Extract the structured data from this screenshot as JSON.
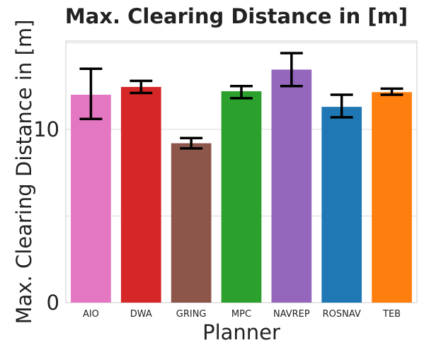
{
  "chart_data": {
    "type": "bar",
    "title": "Max. Clearing Distance in [m]",
    "xlabel": "Planner",
    "ylabel": "Max. Clearing Distance in [m]",
    "categories": [
      "AIO",
      "DWA",
      "GRING",
      "MPC",
      "NAVREP",
      "ROSNAV",
      "TEB"
    ],
    "values": [
      12.0,
      12.45,
      9.2,
      12.2,
      13.45,
      11.3,
      12.15
    ],
    "error_low": [
      10.6,
      12.1,
      8.9,
      11.8,
      12.5,
      10.7,
      12.0
    ],
    "error_high": [
      13.5,
      12.8,
      9.5,
      12.5,
      14.4,
      12.0,
      12.35
    ],
    "colors": [
      "#e377c2",
      "#d62728",
      "#8c564b",
      "#2ca02c",
      "#9467bd",
      "#1f77b4",
      "#ff7f0e"
    ],
    "yticks": [
      0,
      10
    ],
    "ytick_labels": [
      "0",
      "10"
    ],
    "ylim": [
      0,
      15.1
    ],
    "grid": true,
    "legend": "none"
  }
}
